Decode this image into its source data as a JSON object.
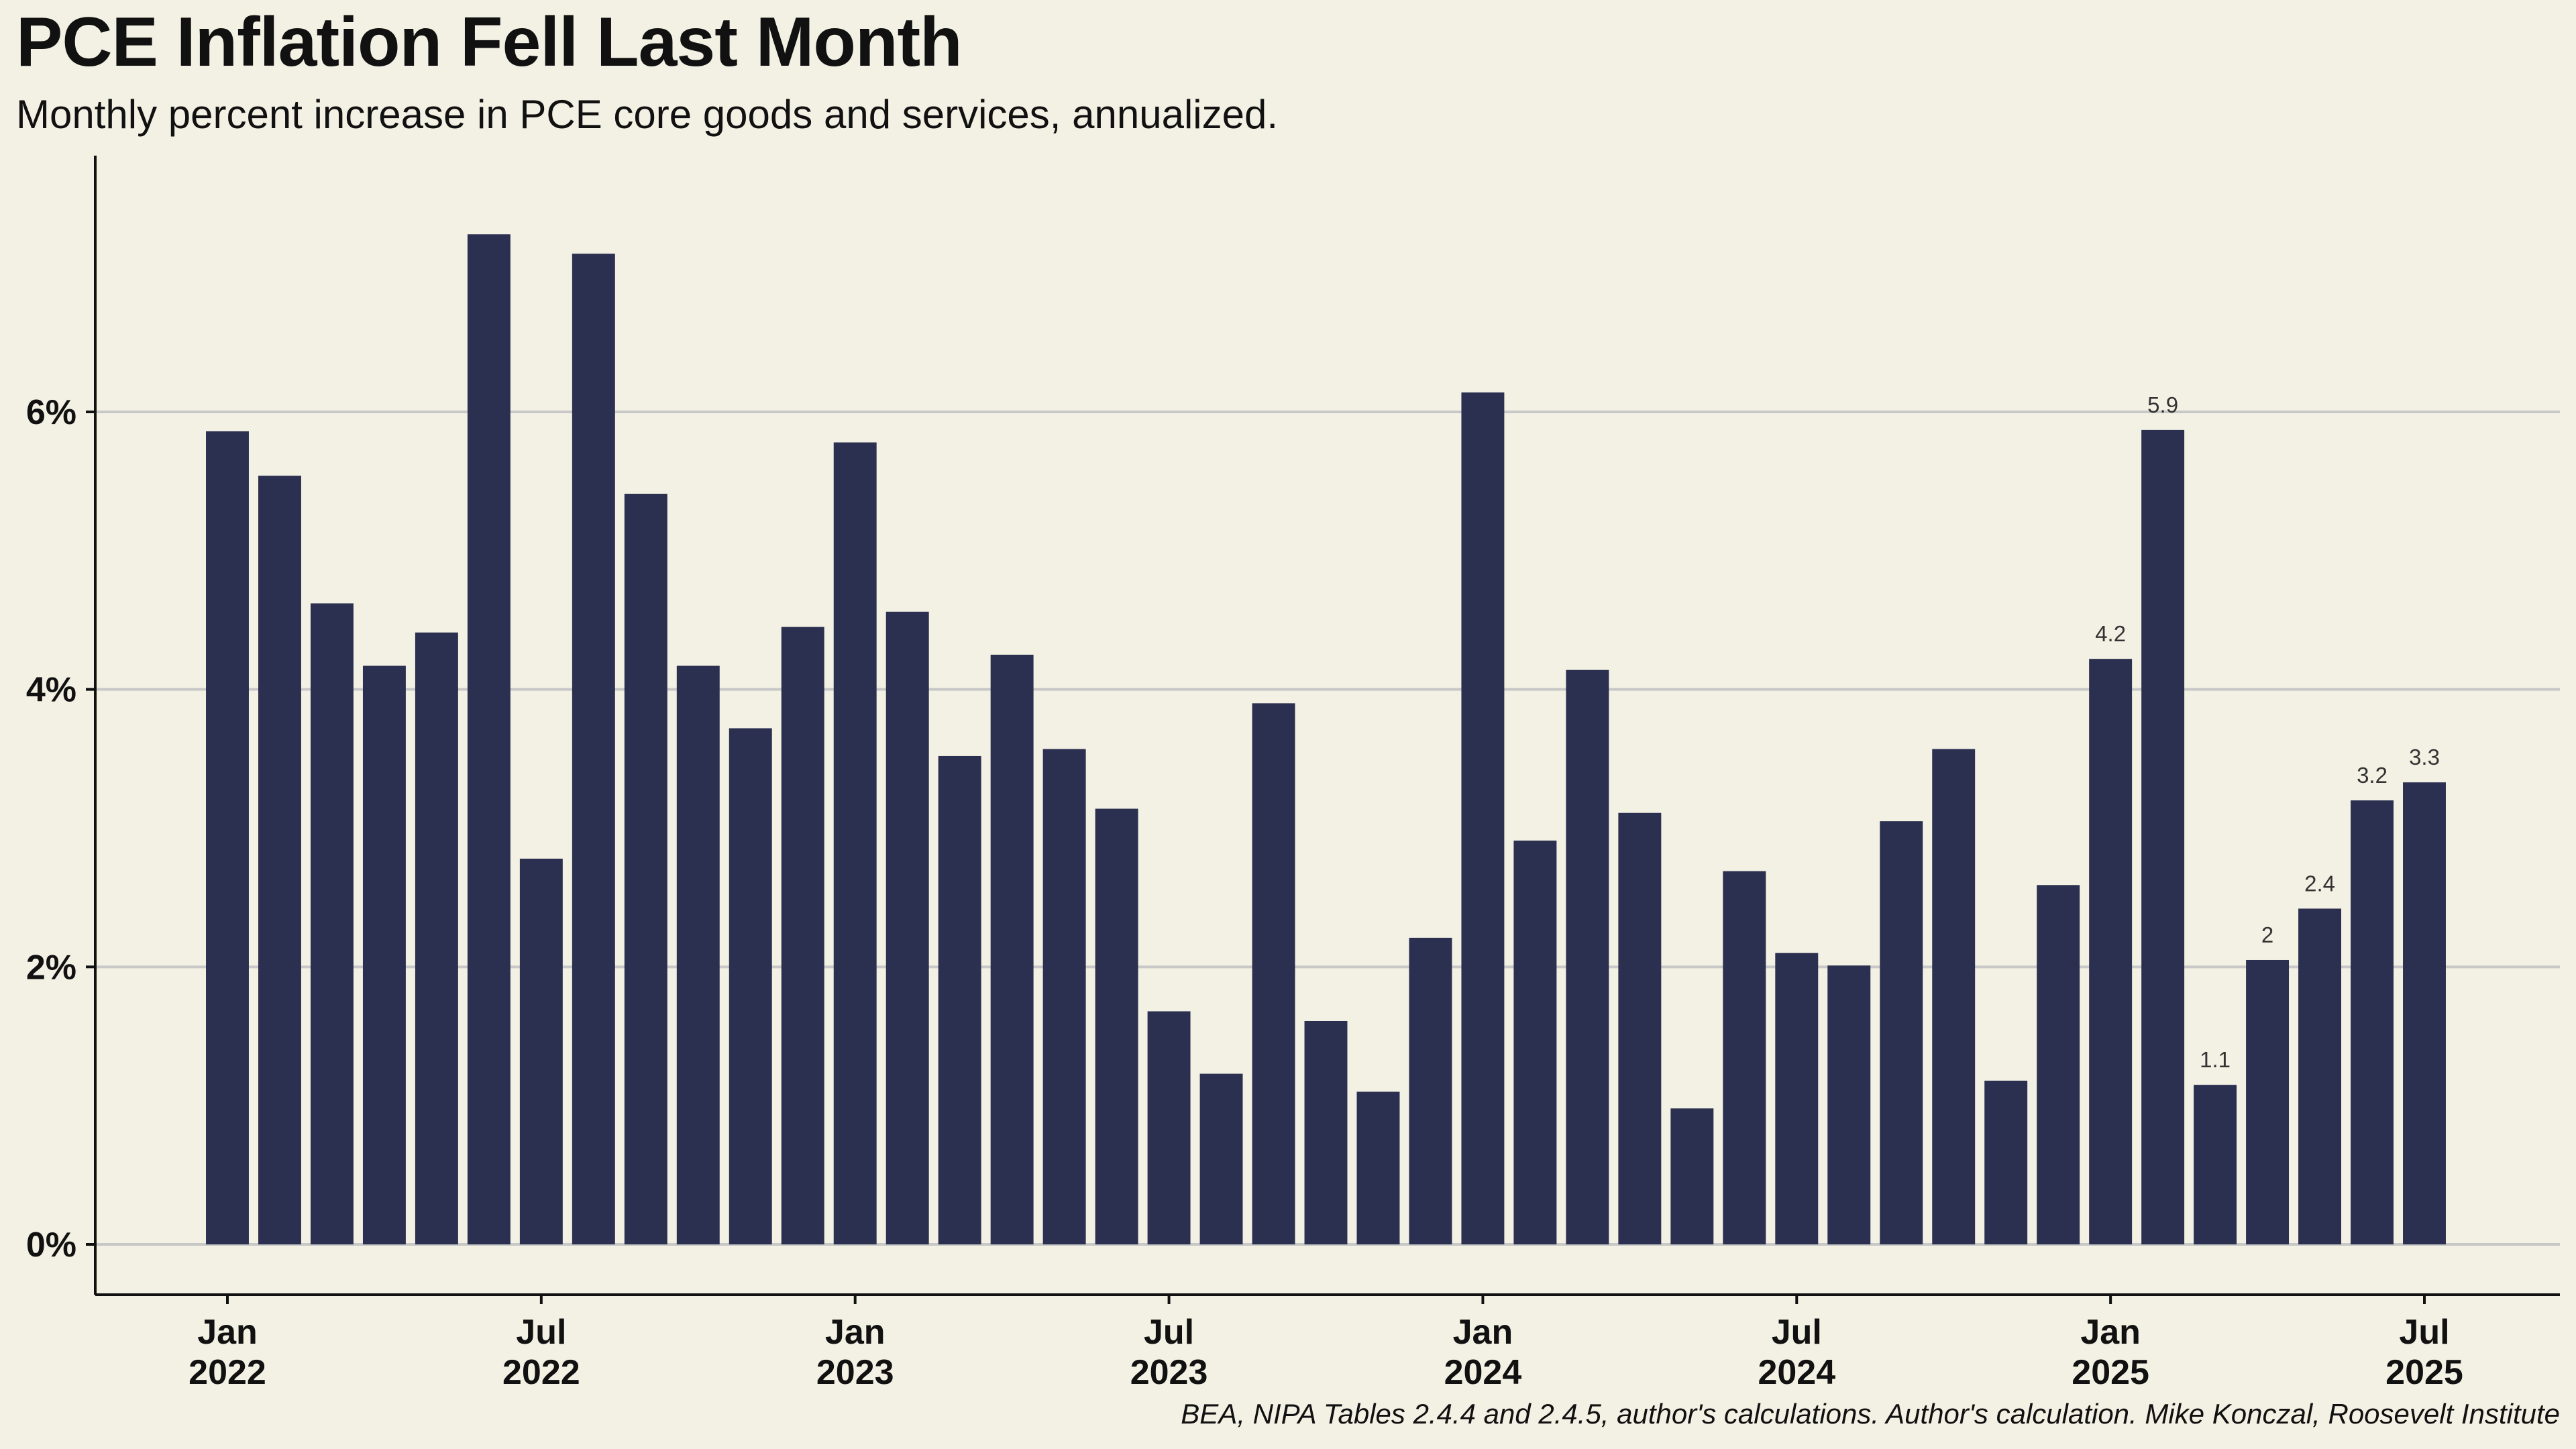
{
  "title": "PCE Inflation Fell Last Month",
  "subtitle": "Monthly percent increase in PCE core goods and services, annualized.",
  "caption": "BEA, NIPA Tables 2.4.4 and 2.4.5, author's calculations. Author's calculation. Mike Konczal, Roosevelt Institute",
  "colors": {
    "background": "#f3f1e4",
    "bar": "#2b3050",
    "grid": "#c8c8c8",
    "axis": "#111111"
  },
  "chart_data": {
    "type": "bar",
    "grid": "horizontal",
    "ylim": [
      -0.35,
      7.8
    ],
    "yticks": [
      0,
      2,
      4,
      6
    ],
    "ytick_labels": [
      "0%",
      "2%",
      "4%",
      "6%"
    ],
    "xtick_indices": [
      0,
      6,
      12,
      18,
      24,
      30,
      36,
      42
    ],
    "xtick_labels": [
      [
        "Jan",
        "2022"
      ],
      [
        "Jul",
        "2022"
      ],
      [
        "Jan",
        "2023"
      ],
      [
        "Jul",
        "2023"
      ],
      [
        "Jan",
        "2024"
      ],
      [
        "Jul",
        "2024"
      ],
      [
        "Jan",
        "2025"
      ],
      [
        "Jul",
        "2025"
      ]
    ],
    "categories": [
      "2022-01",
      "2022-02",
      "2022-03",
      "2022-04",
      "2022-05",
      "2022-06",
      "2022-07",
      "2022-08",
      "2022-09",
      "2022-10",
      "2022-11",
      "2022-12",
      "2023-01",
      "2023-02",
      "2023-03",
      "2023-04",
      "2023-05",
      "2023-06",
      "2023-07",
      "2023-08",
      "2023-09",
      "2023-10",
      "2023-11",
      "2023-12",
      "2024-01",
      "2024-02",
      "2024-03",
      "2024-04",
      "2024-05",
      "2024-06",
      "2024-07",
      "2024-08",
      "2024-09",
      "2024-10",
      "2024-11",
      "2024-12",
      "2025-01",
      "2025-02",
      "2025-03",
      "2025-04",
      "2025-05",
      "2025-06",
      "2025-07"
    ],
    "values": [
      5.86,
      5.54,
      4.62,
      4.17,
      4.41,
      7.28,
      2.78,
      7.14,
      5.41,
      4.17,
      3.72,
      4.45,
      5.78,
      4.56,
      3.52,
      4.25,
      3.57,
      3.14,
      1.68,
      1.23,
      3.9,
      1.61,
      1.1,
      2.21,
      6.14,
      2.91,
      4.14,
      3.11,
      0.98,
      2.69,
      2.1,
      2.01,
      3.05,
      3.57,
      1.18,
      2.59,
      4.22,
      5.87,
      1.15,
      2.05,
      2.42,
      3.2,
      3.33
    ],
    "data_labels": [
      {
        "index": 36,
        "text": "4.2"
      },
      {
        "index": 37,
        "text": "5.9"
      },
      {
        "index": 38,
        "text": "1.1"
      },
      {
        "index": 39,
        "text": "2"
      },
      {
        "index": 40,
        "text": "2.4"
      },
      {
        "index": 41,
        "text": "3.2"
      },
      {
        "index": 42,
        "text": "3.3"
      }
    ]
  }
}
